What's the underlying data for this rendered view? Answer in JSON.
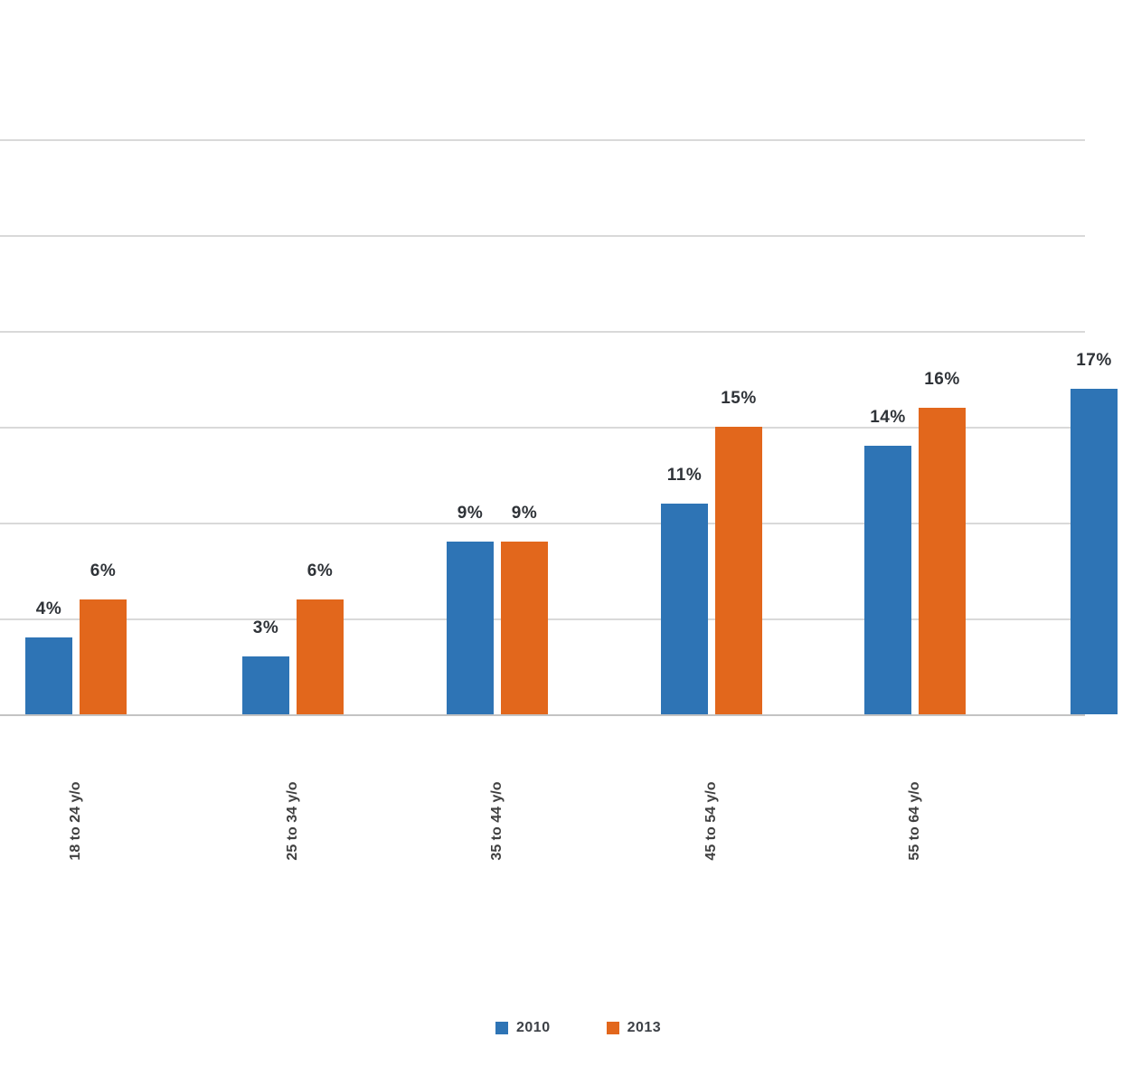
{
  "chart_data": {
    "type": "bar",
    "title": "",
    "xlabel": "",
    "ylabel": "",
    "categories": [
      "18 to 24 y/o",
      "25 to 34 y/o",
      "35 to 44 y/o",
      "45 to 54 y/o",
      "55 to 64 y/o",
      ""
    ],
    "series": [
      {
        "name": "2010",
        "color": "#2E74B5",
        "values": [
          4,
          3,
          9,
          11,
          14,
          17
        ]
      },
      {
        "name": "2013",
        "color": "#E2671C",
        "values": [
          6,
          6,
          9,
          15,
          16,
          null
        ]
      }
    ],
    "data_labels": [
      [
        "4%",
        "6%"
      ],
      [
        "3%",
        "6%"
      ],
      [
        "9%",
        "9%"
      ],
      [
        "11%",
        "15%"
      ],
      [
        "14%",
        "16%"
      ],
      [
        "17%",
        null
      ]
    ],
    "ylim": [
      0,
      30
    ],
    "gridline_step": 5,
    "y_tick_labels_visible": false,
    "grid": true,
    "legend_position": "bottom"
  },
  "legend": {
    "items": [
      {
        "label": "2010",
        "color": "#2E74B5"
      },
      {
        "label": "2013",
        "color": "#E2671C"
      }
    ]
  },
  "colors": {
    "background": "#FFFFFF",
    "gridline": "#D9D9D9",
    "axis": "#C3C3C3",
    "data_label": "#2F3338",
    "category_label": "#404040"
  }
}
